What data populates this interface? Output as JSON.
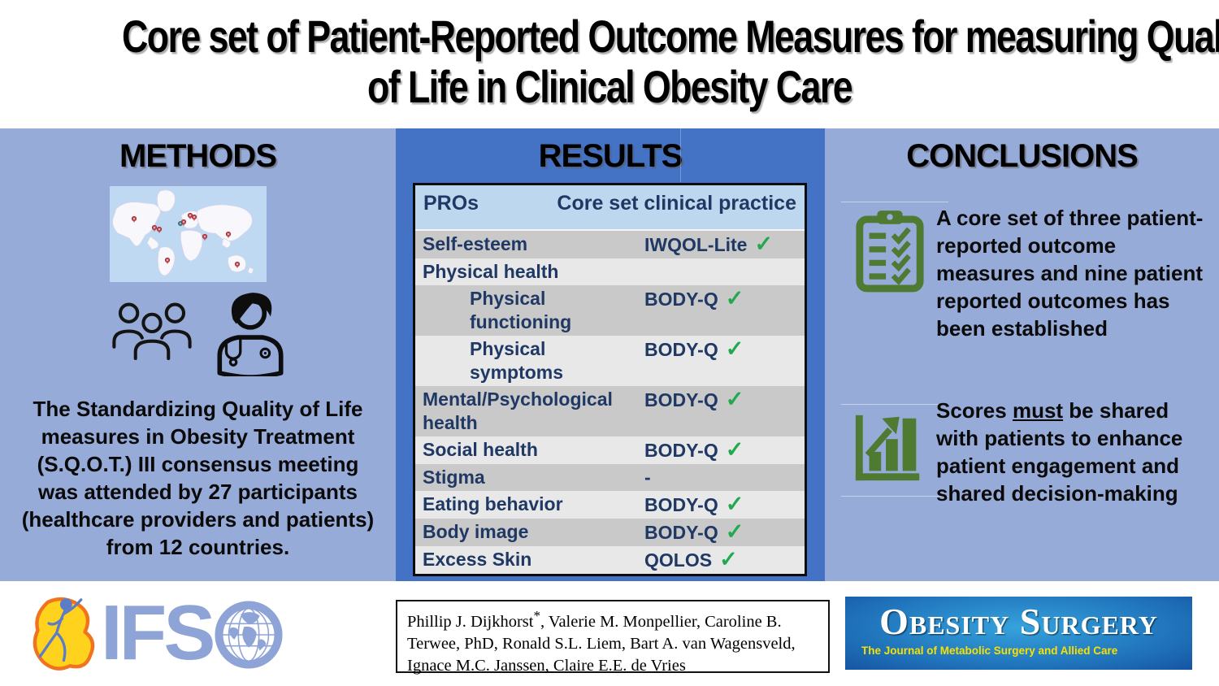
{
  "title": {
    "line1": "Core set of Patient-Reported Outcome Measures for measuring Quality",
    "line2": "of Life in Clinical Obesity Care"
  },
  "methods": {
    "header": "METHODS",
    "description": "The Standardizing Quality of Life measures in Obesity Treatment (S.Q.O.T.) III consensus meeting was attended by 27 participants (healthcare providers and patients) from 12 countries."
  },
  "results": {
    "header": "RESULTS",
    "check_glyph": "✓",
    "table": {
      "col_pro": "PROs",
      "col_core": "Core set clinical practice",
      "rows": [
        {
          "pro": "Self-esteem",
          "instrument": "IWQOL-Lite",
          "check": true,
          "indent": false
        },
        {
          "pro": "Physical health",
          "instrument": "",
          "check": false,
          "indent": false
        },
        {
          "pro": "Physical functioning",
          "instrument": "BODY-Q",
          "check": true,
          "indent": true
        },
        {
          "pro": "Physical symptoms",
          "instrument": "BODY-Q",
          "check": true,
          "indent": true
        },
        {
          "pro": "Mental/Psychological health",
          "instrument": "BODY-Q",
          "check": true,
          "indent": false
        },
        {
          "pro": "Social health",
          "instrument": "BODY-Q",
          "check": true,
          "indent": false
        },
        {
          "pro": "Stigma",
          "instrument": "-",
          "check": false,
          "indent": false
        },
        {
          "pro": "Eating behavior",
          "instrument": "BODY-Q",
          "check": true,
          "indent": false
        },
        {
          "pro": "Body image",
          "instrument": "BODY-Q",
          "check": true,
          "indent": false
        },
        {
          "pro": "Excess Skin",
          "instrument": "QOLOS",
          "check": true,
          "indent": false
        }
      ]
    }
  },
  "conclusions": {
    "header": "CONCLUSIONS",
    "point1": "A core set of three patient-reported outcome measures and nine patient reported outcomes has been established",
    "point2": {
      "pre": "Scores ",
      "underlined": "must",
      "post": " be shared with patients to enhance patient engagement and shared decision-making"
    }
  },
  "footer": {
    "authors_name": "Phillip J. Dijkhorst",
    "authors_mark": "*",
    "authors_rest": ", Valerie M. Monpellier, Caroline B. Terwee, PhD, Ronald S.L. Liem, Bart A. van Wagensveld, Ignace M.C. Janssen, Claire E.E. de Vries",
    "ifso_label": "IFS",
    "journal_title": "Obesity Surgery",
    "journal_subtitle": "The Journal of Metabolic Surgery and Allied Care"
  },
  "colors": {
    "light_column_blue": "#97abd9",
    "results_blue": "#4472c4",
    "table_header_blue": "#bdd7ee",
    "table_text_navy": "#1f3864",
    "row_dark_gray": "#c9c9c9",
    "row_light_gray": "#e8e8e8",
    "check_green": "#22a94e",
    "icon_green": "#4e7a31",
    "journal_yellow": "#f8e000",
    "ifso_blue": "#8ea3d6"
  }
}
